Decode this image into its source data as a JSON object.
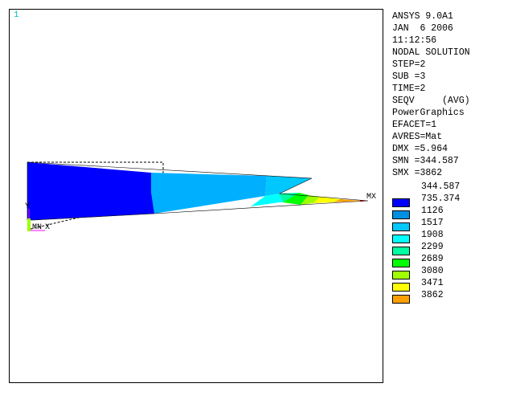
{
  "window": {
    "number": "1"
  },
  "info_lines": [
    "ANSYS 9.0A1",
    "JAN  6 2006",
    "11:12:56",
    "NODAL SOLUTION",
    "STEP=2",
    "SUB =3",
    "TIME=2",
    "SEQV     (AVG)",
    "PowerGraphics",
    "EFACET=1",
    "AVRES=Mat",
    "DMX =5.964",
    "SMN =344.587",
    "SMX =3862"
  ],
  "legend": [
    {
      "value": "344.587",
      "color": "#0000ff",
      "swatch": false
    },
    {
      "value": "735.374",
      "color": "#0090e0",
      "swatch": true
    },
    {
      "value": "1126",
      "color": "#00c8ff",
      "swatch": true
    },
    {
      "value": "1517",
      "color": "#00ffff",
      "swatch": true
    },
    {
      "value": "1908",
      "color": "#00ffa0",
      "swatch": true
    },
    {
      "value": "2299",
      "color": "#00ff00",
      "swatch": true
    },
    {
      "value": "2689",
      "color": "#a0ff00",
      "swatch": true
    },
    {
      "value": "3080",
      "color": "#ffff00",
      "swatch": true
    },
    {
      "value": "3471",
      "color": "#ffa000",
      "swatch": true
    },
    {
      "value": "3862",
      "color": "#ff0000",
      "swatch": true
    }
  ],
  "plot_labels": {
    "mx": "MX",
    "mn": "MN",
    "y": "Y",
    "x": "X"
  }
}
